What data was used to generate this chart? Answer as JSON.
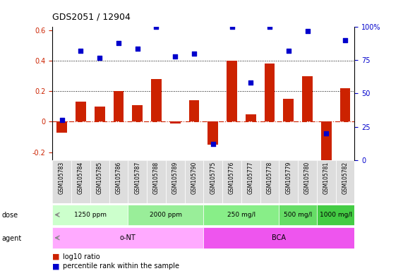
{
  "title": "GDS2051 / 12904",
  "samples": [
    "GSM105783",
    "GSM105784",
    "GSM105785",
    "GSM105786",
    "GSM105787",
    "GSM105788",
    "GSM105789",
    "GSM105790",
    "GSM105775",
    "GSM105776",
    "GSM105777",
    "GSM105778",
    "GSM105779",
    "GSM105780",
    "GSM105781",
    "GSM105782"
  ],
  "log10_ratio": [
    -0.07,
    0.13,
    0.1,
    0.2,
    0.11,
    0.28,
    -0.01,
    0.14,
    -0.15,
    0.4,
    0.05,
    0.38,
    0.15,
    0.3,
    -0.25,
    0.22
  ],
  "percentile_rank_pct": [
    30,
    82,
    77,
    88,
    84,
    100,
    78,
    80,
    12,
    100,
    58,
    100,
    82,
    97,
    20,
    90
  ],
  "dose_groups": [
    {
      "label": "1250 ppm",
      "start": 0,
      "end": 4,
      "color": "#ccffcc"
    },
    {
      "label": "2000 ppm",
      "start": 4,
      "end": 8,
      "color": "#99ee99"
    },
    {
      "label": "250 mg/l",
      "start": 8,
      "end": 12,
      "color": "#88ee88"
    },
    {
      "label": "500 mg/l",
      "start": 12,
      "end": 14,
      "color": "#66dd66"
    },
    {
      "label": "1000 mg/l",
      "start": 14,
      "end": 16,
      "color": "#44cc44"
    }
  ],
  "agent_groups": [
    {
      "label": "o-NT",
      "start": 0,
      "end": 8,
      "color": "#ffaaff"
    },
    {
      "label": "BCA",
      "start": 8,
      "end": 16,
      "color": "#ee55ee"
    }
  ],
  "bar_color": "#cc2200",
  "dot_color": "#0000cc",
  "zero_line_color": "#cc2200",
  "dotted_line_color": "#000000",
  "ylim_left": [
    -0.25,
    0.62
  ],
  "ylim_right": [
    0,
    100
  ],
  "yticks_left": [
    -0.2,
    0.0,
    0.2,
    0.4,
    0.6
  ],
  "yticks_right": [
    0,
    25,
    50,
    75,
    100
  ],
  "ytick_labels_left": [
    "-0.2",
    "0",
    "0.2",
    "0.4",
    "0.6"
  ],
  "ytick_labels_right": [
    "0",
    "25",
    "50",
    "75",
    "100%"
  ],
  "hlines": [
    0.2,
    0.4
  ],
  "background_color": "#ffffff",
  "label_area_color": "#dddddd"
}
